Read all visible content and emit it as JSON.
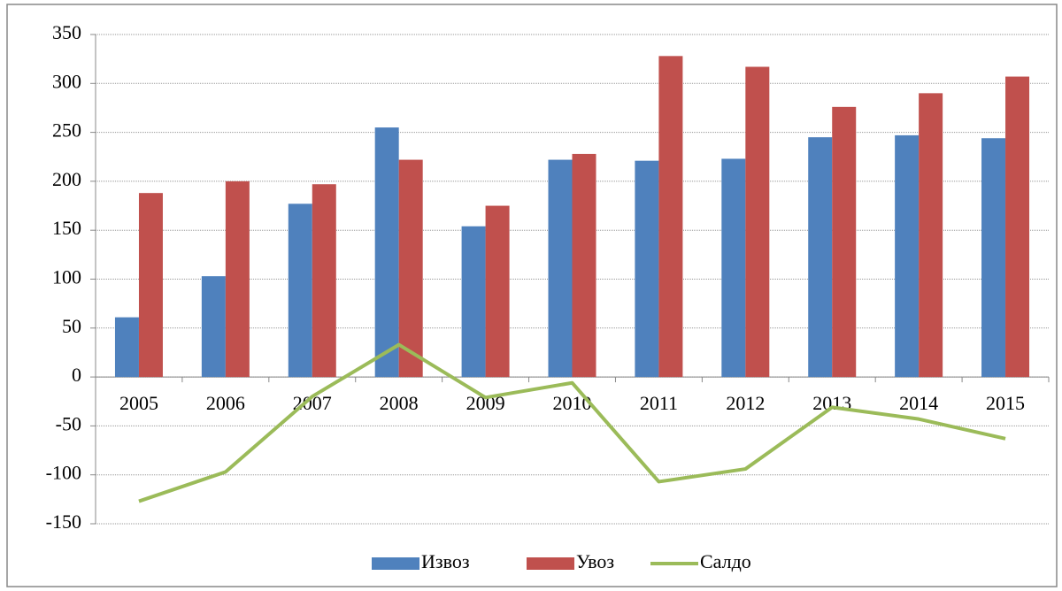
{
  "chart_data": {
    "type": "bar",
    "categories": [
      "2005",
      "2006",
      "2007",
      "2008",
      "2009",
      "2010",
      "2011",
      "2012",
      "2013",
      "2014",
      "2015"
    ],
    "series": [
      {
        "name": "Извоз",
        "color": "#4f81bd",
        "type": "bar",
        "values": [
          61,
          103,
          177,
          255,
          154,
          222,
          221,
          223,
          245,
          247,
          244
        ]
      },
      {
        "name": "Увоз",
        "color": "#c0504d",
        "type": "bar",
        "values": [
          188,
          200,
          197,
          222,
          175,
          228,
          328,
          317,
          276,
          290,
          307
        ]
      },
      {
        "name": "Салдо",
        "color": "#9bbb59",
        "type": "line",
        "values": [
          -127,
          -97,
          -20,
          33,
          -21,
          -6,
          -107,
          -94,
          -31,
          -43,
          -63
        ]
      }
    ],
    "ylim": [
      -150,
      350
    ],
    "yticks": [
      -150,
      -100,
      -50,
      0,
      50,
      100,
      150,
      200,
      250,
      300,
      350
    ],
    "grid": true,
    "legend": "bottom"
  }
}
